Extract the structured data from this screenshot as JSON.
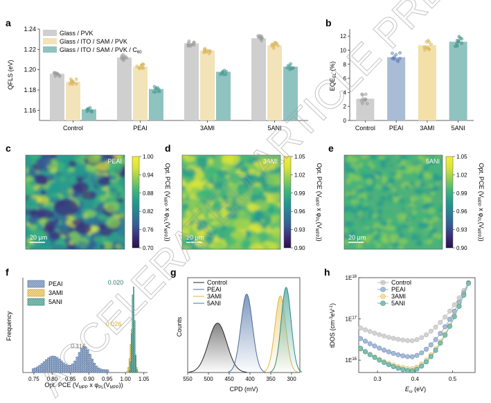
{
  "watermark": "ACCELERATED ARTICLE PREVIEW",
  "panel_letters": [
    "a",
    "b",
    "c",
    "d",
    "e",
    "f",
    "g",
    "h"
  ],
  "colors": {
    "glass_pvk": "#cfcfcf",
    "ito_sam_pvk": "#f2e3b8",
    "c60": "#8fc3c0",
    "peai": "#8fa9cc",
    "ami3": "#f0d68c",
    "ani5": "#6fb5ad",
    "control": "#222222"
  },
  "chart_data": [
    {
      "panel": "a",
      "type": "bar",
      "ylabel": "QFLS (eV)",
      "ylim": [
        1.15,
        1.24
      ],
      "yticks": [
        "1.16",
        "1.18",
        "1.20",
        "1.22",
        "1.24"
      ],
      "categories": [
        "Control",
        "PEAI",
        "3AMI",
        "5ANI"
      ],
      "legend": [
        "Glass / PVK",
        "Glass / ITO / SAM / PVK",
        "Glass / ITO / SAM / PVK / C"
      ],
      "legend_sub": "60",
      "series": [
        {
          "name": "Glass / PVK",
          "values": [
            1.196,
            1.212,
            1.226,
            1.231
          ]
        },
        {
          "name": "Glass / ITO / SAM / PVK",
          "values": [
            1.188,
            1.203,
            1.219,
            1.224
          ]
        },
        {
          "name": "Glass / ITO / SAM / PVK / C60",
          "values": [
            1.161,
            1.181,
            1.198,
            1.203
          ]
        }
      ]
    },
    {
      "panel": "b",
      "type": "bar",
      "ylabel": "EQE",
      "ylabel_sub": "EL",
      "ylabel_tail": " (%)",
      "ylim": [
        0,
        13
      ],
      "yticks": [
        "0",
        "2",
        "4",
        "6",
        "8",
        "10",
        "12"
      ],
      "categories": [
        "Control",
        "PEAI",
        "3AMI",
        "5ANI"
      ],
      "values": [
        3.1,
        9.0,
        10.7,
        11.2
      ]
    },
    {
      "panel": "cde",
      "type": "heatmap",
      "maps": [
        {
          "label": "PEAI",
          "scale": "20 μm",
          "ticks": [
            "1.00",
            "0.94",
            "0.88",
            "0.82",
            "0.76",
            "0.70"
          ]
        },
        {
          "label": "3AMI",
          "scale": "20 μm",
          "ticks": [
            "1.05",
            "1.02",
            "0.99",
            "0.96",
            "0.93",
            "0.90"
          ]
        },
        {
          "label": "5ANI",
          "scale": "20 μm",
          "ticks": [
            "1.05",
            "1.02",
            "0.99",
            "0.96",
            "0.93",
            "0.90"
          ]
        }
      ],
      "cbar_label": "Opt. PCE (V",
      "cbar_sub1": "MPP",
      "cbar_mid": " x φ",
      "cbar_sub2": "PL",
      "cbar_mid2": "(V",
      "cbar_sub3": "MPP",
      "cbar_tail": "))"
    },
    {
      "panel": "f",
      "type": "bar",
      "ylabel": "Frequency",
      "xlabel": "Opt. PCE (V",
      "xlabel_sub1": "MPP",
      "xlabel_mid": " x φ",
      "xlabel_sub2": "PL",
      "xlabel_mid2": "(V",
      "xlabel_sub3": "MPP",
      "xlabel_tail": "))",
      "xlim": [
        0.72,
        1.06
      ],
      "xticks": [
        "0.75",
        "0.80",
        "0.85",
        "0.90",
        "0.95",
        "1.00",
        "1.05"
      ],
      "legend": [
        "PEAI",
        "3AMI",
        "5ANI"
      ],
      "annotations": [
        "0.116",
        "0.026",
        "0.020"
      ],
      "series": [
        {
          "name": "PEAI",
          "center": 0.865,
          "width": 0.116
        },
        {
          "name": "3AMI",
          "center": 1.018,
          "width": 0.026
        },
        {
          "name": "5ANI",
          "center": 1.02,
          "width": 0.02
        }
      ]
    },
    {
      "panel": "g",
      "type": "area",
      "ylabel": "Counts",
      "xlabel": "CPD (mV)",
      "xlim": [
        550,
        280
      ],
      "xticks": [
        "550",
        "500",
        "450",
        "400",
        "350",
        "300"
      ],
      "legend": [
        "Control",
        "PEAI",
        "3AMI",
        "5ANI"
      ],
      "series": [
        {
          "name": "Control",
          "center": 478,
          "sigma": 22,
          "peak": 0.58
        },
        {
          "name": "PEAI",
          "center": 408,
          "sigma": 14,
          "peak": 0.92
        },
        {
          "name": "3AMI",
          "center": 327,
          "sigma": 13,
          "peak": 0.9
        },
        {
          "name": "5ANI",
          "center": 313,
          "sigma": 12,
          "peak": 1.0
        }
      ]
    },
    {
      "panel": "h",
      "type": "line",
      "ylabel": "tDOS (cm",
      "ylabel_sup": "-3",
      "ylabel_mid": "eV",
      "ylabel_sup2": "-1",
      "ylabel_tail": ")",
      "xlabel": "E",
      "xlabel_sub": "ω",
      "xlabel_tail": " (eV)",
      "xlim": [
        0.25,
        0.56
      ],
      "xticks": [
        "0.3",
        "0.4",
        "0.5"
      ],
      "ylim_log": [
        15.7,
        18.0
      ],
      "yticks": [
        {
          "base": "1E",
          "exp": "16"
        },
        {
          "base": "1E",
          "exp": "17"
        },
        {
          "base": "1E",
          "exp": "18"
        }
      ],
      "legend": [
        "Control",
        "PEAI",
        "3AMI",
        "5ANI"
      ],
      "series": [
        {
          "name": "Control",
          "min_e": 0.39,
          "min_log": 16.47,
          "left_log": 16.8
        },
        {
          "name": "PEAI",
          "min_e": 0.39,
          "min_log": 16.08,
          "left_log": 16.55
        },
        {
          "name": "3AMI",
          "min_e": 0.39,
          "min_log": 15.79,
          "left_log": 16.3
        },
        {
          "name": "5ANI",
          "min_e": 0.39,
          "min_log": 15.74,
          "left_log": 16.32
        }
      ]
    }
  ]
}
